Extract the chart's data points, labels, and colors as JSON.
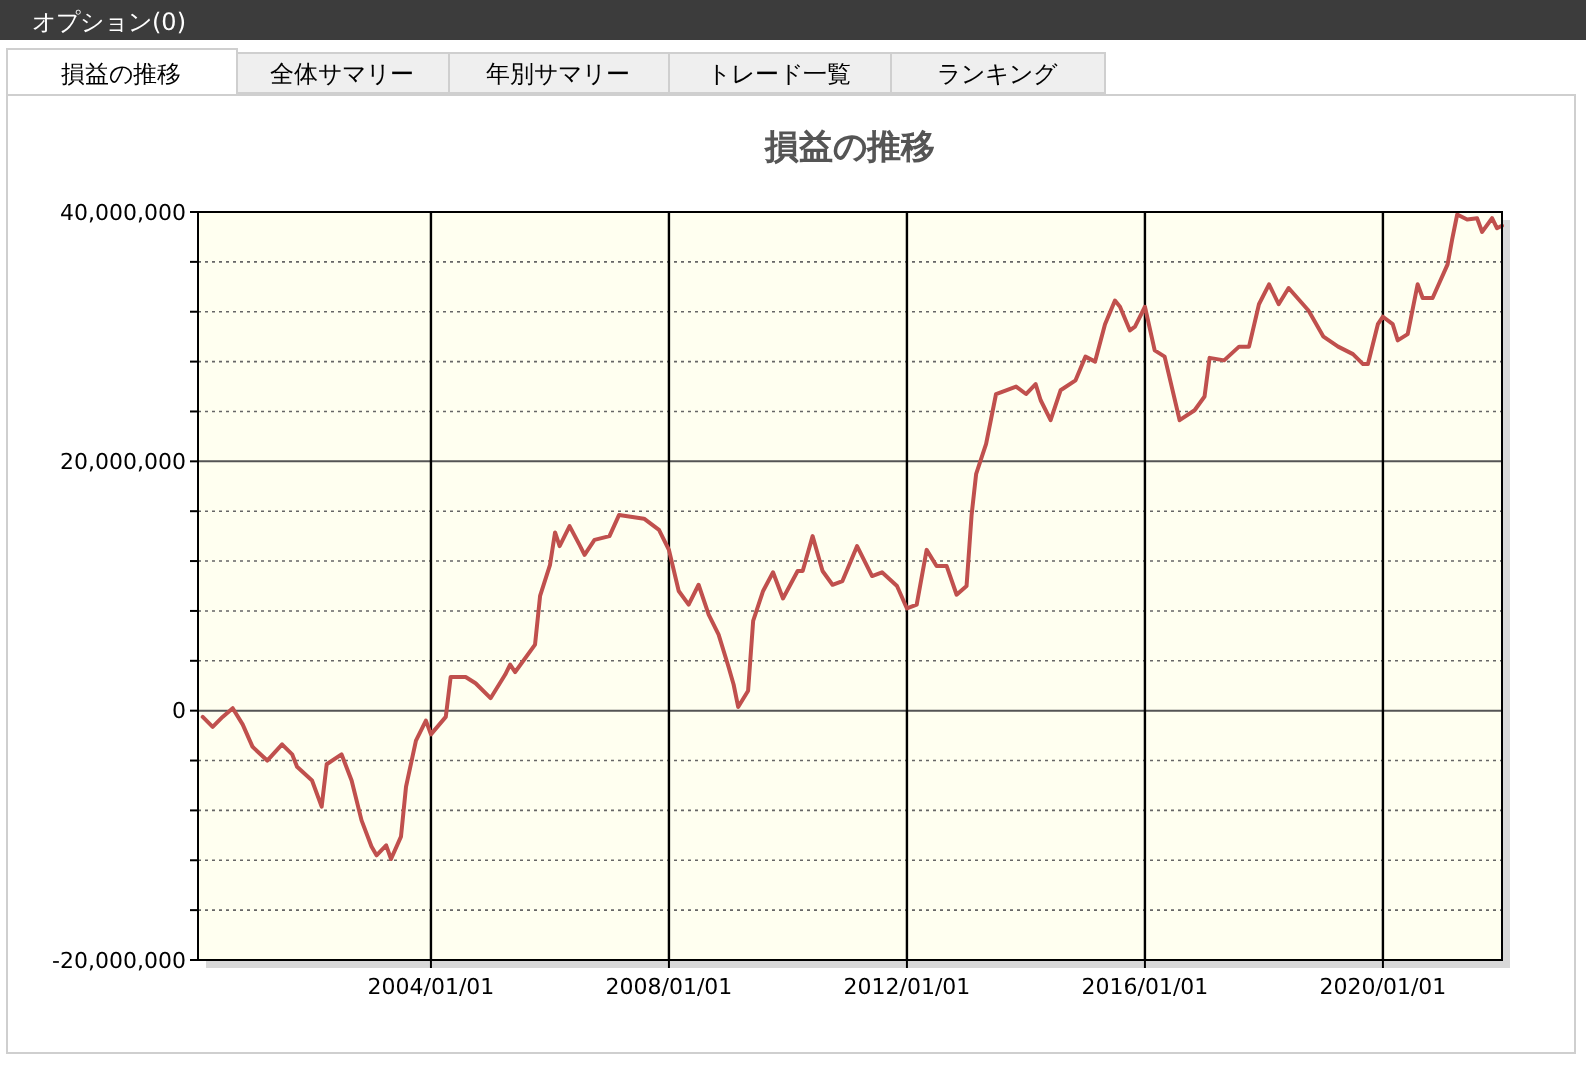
{
  "chart_data": {
    "type": "line",
    "title": "損益の推移",
    "annotations": [
      "オプション(0)",
      "損益の推移",
      "全体サマリー",
      "年別サマリー",
      "トレード一覧",
      "ランキング"
    ],
    "x": [
      "2000-03",
      "2000-05",
      "2000-07",
      "2000-09",
      "2000-11",
      "2001-01",
      "2001-04",
      "2001-07",
      "2001-09",
      "2001-10",
      "2002-01",
      "2002-03",
      "2002-04",
      "2002-07",
      "2002-09",
      "2002-11",
      "2003-01",
      "2003-02",
      "2003-04",
      "2003-05",
      "2003-07",
      "2003-08",
      "2003-10",
      "2003-12",
      "2004-01",
      "2004-04",
      "2004-05",
      "2004-08",
      "2004-10",
      "2005-01",
      "2005-04",
      "2005-05",
      "2005-06",
      "2005-10",
      "2005-11",
      "2006-01",
      "2006-02",
      "2006-03",
      "2006-05",
      "2006-07",
      "2006-08",
      "2006-10",
      "2007-01",
      "2007-03",
      "2007-08",
      "2007-11",
      "2008-01",
      "2008-03",
      "2008-05",
      "2008-07",
      "2008-09",
      "2008-11",
      "2009-01",
      "2009-02",
      "2009-03",
      "2009-05",
      "2009-06",
      "2009-08",
      "2009-10",
      "2009-12",
      "2010-03",
      "2010-04",
      "2010-06",
      "2010-08",
      "2010-10",
      "2010-12",
      "2011-03",
      "2011-06",
      "2011-08",
      "2011-11",
      "2012-01",
      "2012-03",
      "2012-05",
      "2012-07",
      "2012-09",
      "2012-11",
      "2013-01",
      "2013-02",
      "2013-03",
      "2013-05",
      "2013-07",
      "2013-09",
      "2013-11",
      "2014-01",
      "2014-03",
      "2014-04",
      "2014-06",
      "2014-08",
      "2014-11",
      "2015-01",
      "2015-03",
      "2015-05",
      "2015-07",
      "2015-08",
      "2015-10",
      "2015-11",
      "2016-01",
      "2016-03",
      "2016-05",
      "2016-08",
      "2016-11",
      "2017-01",
      "2017-02",
      "2017-05",
      "2017-08",
      "2017-10",
      "2017-12",
      "2018-02",
      "2018-04",
      "2018-06",
      "2018-10",
      "2019-01",
      "2019-04",
      "2019-07",
      "2019-09",
      "2019-10",
      "2019-12",
      "2020-01",
      "2020-03",
      "2020-04",
      "2020-06",
      "2020-08",
      "2020-09",
      "2020-11",
      "2021-02",
      "2021-03",
      "2021-04",
      "2021-06",
      "2021-08",
      "2021-09",
      "2021-11",
      "2021-12",
      "2022-01"
    ],
    "series": [
      {
        "color": "#c0504d",
        "values": [
          -500000,
          -1300000,
          -500000,
          200000,
          -1100000,
          -2900000,
          -4000000,
          -2700000,
          -3500000,
          -4500000,
          -5600000,
          -7700000,
          -4300000,
          -3500000,
          -5600000,
          -8800000,
          -10900000,
          -11600000,
          -10800000,
          -11900000,
          -10100000,
          -6100000,
          -2400000,
          -800000,
          -1900000,
          -500000,
          2700000,
          2700000,
          2200000,
          1000000,
          2900000,
          3700000,
          3100000,
          5300000,
          9200000,
          11700000,
          14300000,
          13200000,
          14800000,
          13300000,
          12500000,
          13700000,
          14000000,
          15700000,
          15400000,
          14500000,
          12900000,
          9600000,
          8500000,
          10100000,
          7700000,
          6100000,
          3500000,
          2100000,
          300000,
          1600000,
          7200000,
          9600000,
          11100000,
          9000000,
          11200000,
          11200000,
          14000000,
          11200000,
          10100000,
          10400000,
          13200000,
          10800000,
          11100000,
          10000000,
          8200000,
          8500000,
          12900000,
          11600000,
          11600000,
          9300000,
          10000000,
          15700000,
          19000000,
          21400000,
          25400000,
          25700000,
          26000000,
          25400000,
          26200000,
          24900000,
          23300000,
          25700000,
          26500000,
          28400000,
          28000000,
          31000000,
          32900000,
          32400000,
          30500000,
          30800000,
          32400000,
          28900000,
          28400000,
          23300000,
          24100000,
          25200000,
          28300000,
          28100000,
          29200000,
          29200000,
          32600000,
          34200000,
          32600000,
          33900000,
          32100000,
          30000000,
          29200000,
          28600000,
          27800000,
          27800000,
          31000000,
          31600000,
          31000000,
          29700000,
          30200000,
          34200000,
          33100000,
          33100000,
          35800000,
          37800000,
          39800000,
          39400000,
          39500000,
          38400000,
          39500000,
          38700000,
          38900000
        ]
      }
    ],
    "xlim": [
      "2000-02",
      "2022-01"
    ],
    "xticks": [
      {
        "value": "2004-01-01",
        "label": "2004/01/01"
      },
      {
        "value": "2008-01-01",
        "label": "2008/01/01"
      },
      {
        "value": "2012-01-01",
        "label": "2012/01/01"
      },
      {
        "value": "2016-01-01",
        "label": "2016/01/01"
      },
      {
        "value": "2020-01-01",
        "label": "2020/01/01"
      }
    ],
    "ylim": [
      -20000000,
      40000000
    ],
    "yticks": [
      {
        "value": -20000000,
        "label": "-20,000,000"
      },
      {
        "value": -16000000,
        "label": null
      },
      {
        "value": -12000000,
        "label": null
      },
      {
        "value": -8000000,
        "label": null
      },
      {
        "value": -4000000,
        "label": null
      },
      {
        "value": 0,
        "label": "0"
      },
      {
        "value": 4000000,
        "label": null
      },
      {
        "value": 8000000,
        "label": null
      },
      {
        "value": 12000000,
        "label": null
      },
      {
        "value": 16000000,
        "label": null
      },
      {
        "value": 20000000,
        "label": "20,000,000"
      },
      {
        "value": 24000000,
        "label": null
      },
      {
        "value": 28000000,
        "label": null
      },
      {
        "value": 32000000,
        "label": null
      },
      {
        "value": 36000000,
        "label": null
      },
      {
        "value": 40000000,
        "label": "40,000,000"
      }
    ],
    "grid": true,
    "marker": "none",
    "line_style": "solid"
  }
}
